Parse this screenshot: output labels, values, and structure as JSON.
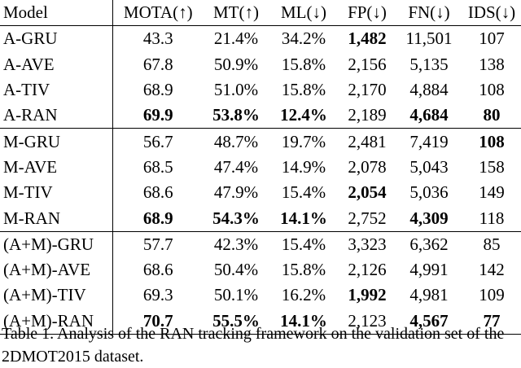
{
  "table": {
    "headers": [
      "Model",
      "MOTA(↑)",
      "MT(↑)",
      "ML(↓)",
      "FP(↓)",
      "FN(↓)",
      "IDS(↓)"
    ],
    "groups": [
      {
        "rows": [
          {
            "model": "A-GRU",
            "cells": [
              [
                "43.3",
                false
              ],
              [
                "21.4%",
                false
              ],
              [
                "34.2%",
                false
              ],
              [
                "1,482",
                true
              ],
              [
                "11,501",
                false
              ],
              [
                "107",
                false
              ]
            ]
          },
          {
            "model": "A-AVE",
            "cells": [
              [
                "67.8",
                false
              ],
              [
                "50.9%",
                false
              ],
              [
                "15.8%",
                false
              ],
              [
                "2,156",
                false
              ],
              [
                "5,135",
                false
              ],
              [
                "138",
                false
              ]
            ]
          },
          {
            "model": "A-TIV",
            "cells": [
              [
                "68.9",
                false
              ],
              [
                "51.0%",
                false
              ],
              [
                "15.8%",
                false
              ],
              [
                "2,170",
                false
              ],
              [
                "4,884",
                false
              ],
              [
                "108",
                false
              ]
            ]
          },
          {
            "model": "A-RAN",
            "cells": [
              [
                "69.9",
                true
              ],
              [
                "53.8%",
                true
              ],
              [
                "12.4%",
                true
              ],
              [
                "2,189",
                false
              ],
              [
                "4,684",
                true
              ],
              [
                "80",
                true
              ]
            ]
          }
        ]
      },
      {
        "rows": [
          {
            "model": "M-GRU",
            "cells": [
              [
                "56.7",
                false
              ],
              [
                "48.7%",
                false
              ],
              [
                "19.7%",
                false
              ],
              [
                "2,481",
                false
              ],
              [
                "7,419",
                false
              ],
              [
                "108",
                true
              ]
            ]
          },
          {
            "model": "M-AVE",
            "cells": [
              [
                "68.5",
                false
              ],
              [
                "47.4%",
                false
              ],
              [
                "14.9%",
                false
              ],
              [
                "2,078",
                false
              ],
              [
                "5,043",
                false
              ],
              [
                "158",
                false
              ]
            ]
          },
          {
            "model": "M-TIV",
            "cells": [
              [
                "68.6",
                false
              ],
              [
                "47.9%",
                false
              ],
              [
                "15.4%",
                false
              ],
              [
                "2,054",
                true
              ],
              [
                "5,036",
                false
              ],
              [
                "149",
                false
              ]
            ]
          },
          {
            "model": "M-RAN",
            "cells": [
              [
                "68.9",
                true
              ],
              [
                "54.3%",
                true
              ],
              [
                "14.1%",
                true
              ],
              [
                "2,752",
                false
              ],
              [
                "4,309",
                true
              ],
              [
                "118",
                false
              ]
            ]
          }
        ]
      },
      {
        "rows": [
          {
            "model": "(A+M)-GRU",
            "cells": [
              [
                "57.7",
                false
              ],
              [
                "42.3%",
                false
              ],
              [
                "15.4%",
                false
              ],
              [
                "3,323",
                false
              ],
              [
                "6,362",
                false
              ],
              [
                "85",
                false
              ]
            ]
          },
          {
            "model": "(A+M)-AVE",
            "cells": [
              [
                "68.6",
                false
              ],
              [
                "50.4%",
                false
              ],
              [
                "15.8%",
                false
              ],
              [
                "2,126",
                false
              ],
              [
                "4,991",
                false
              ],
              [
                "142",
                false
              ]
            ]
          },
          {
            "model": "(A+M)-TIV",
            "cells": [
              [
                "69.3",
                false
              ],
              [
                "50.1%",
                false
              ],
              [
                "16.2%",
                false
              ],
              [
                "1,992",
                true
              ],
              [
                "4,981",
                false
              ],
              [
                "109",
                false
              ]
            ]
          },
          {
            "model": "(A+M)-RAN",
            "cells": [
              [
                "70.7",
                true
              ],
              [
                "55.5%",
                true
              ],
              [
                "14.1%",
                true
              ],
              [
                "2,123",
                false
              ],
              [
                "4,567",
                true
              ],
              [
                "77",
                true
              ]
            ]
          }
        ]
      }
    ]
  },
  "caption": "Table 1. Analysis of the RAN tracking framework on the validation set of the 2DMOT2015 dataset."
}
